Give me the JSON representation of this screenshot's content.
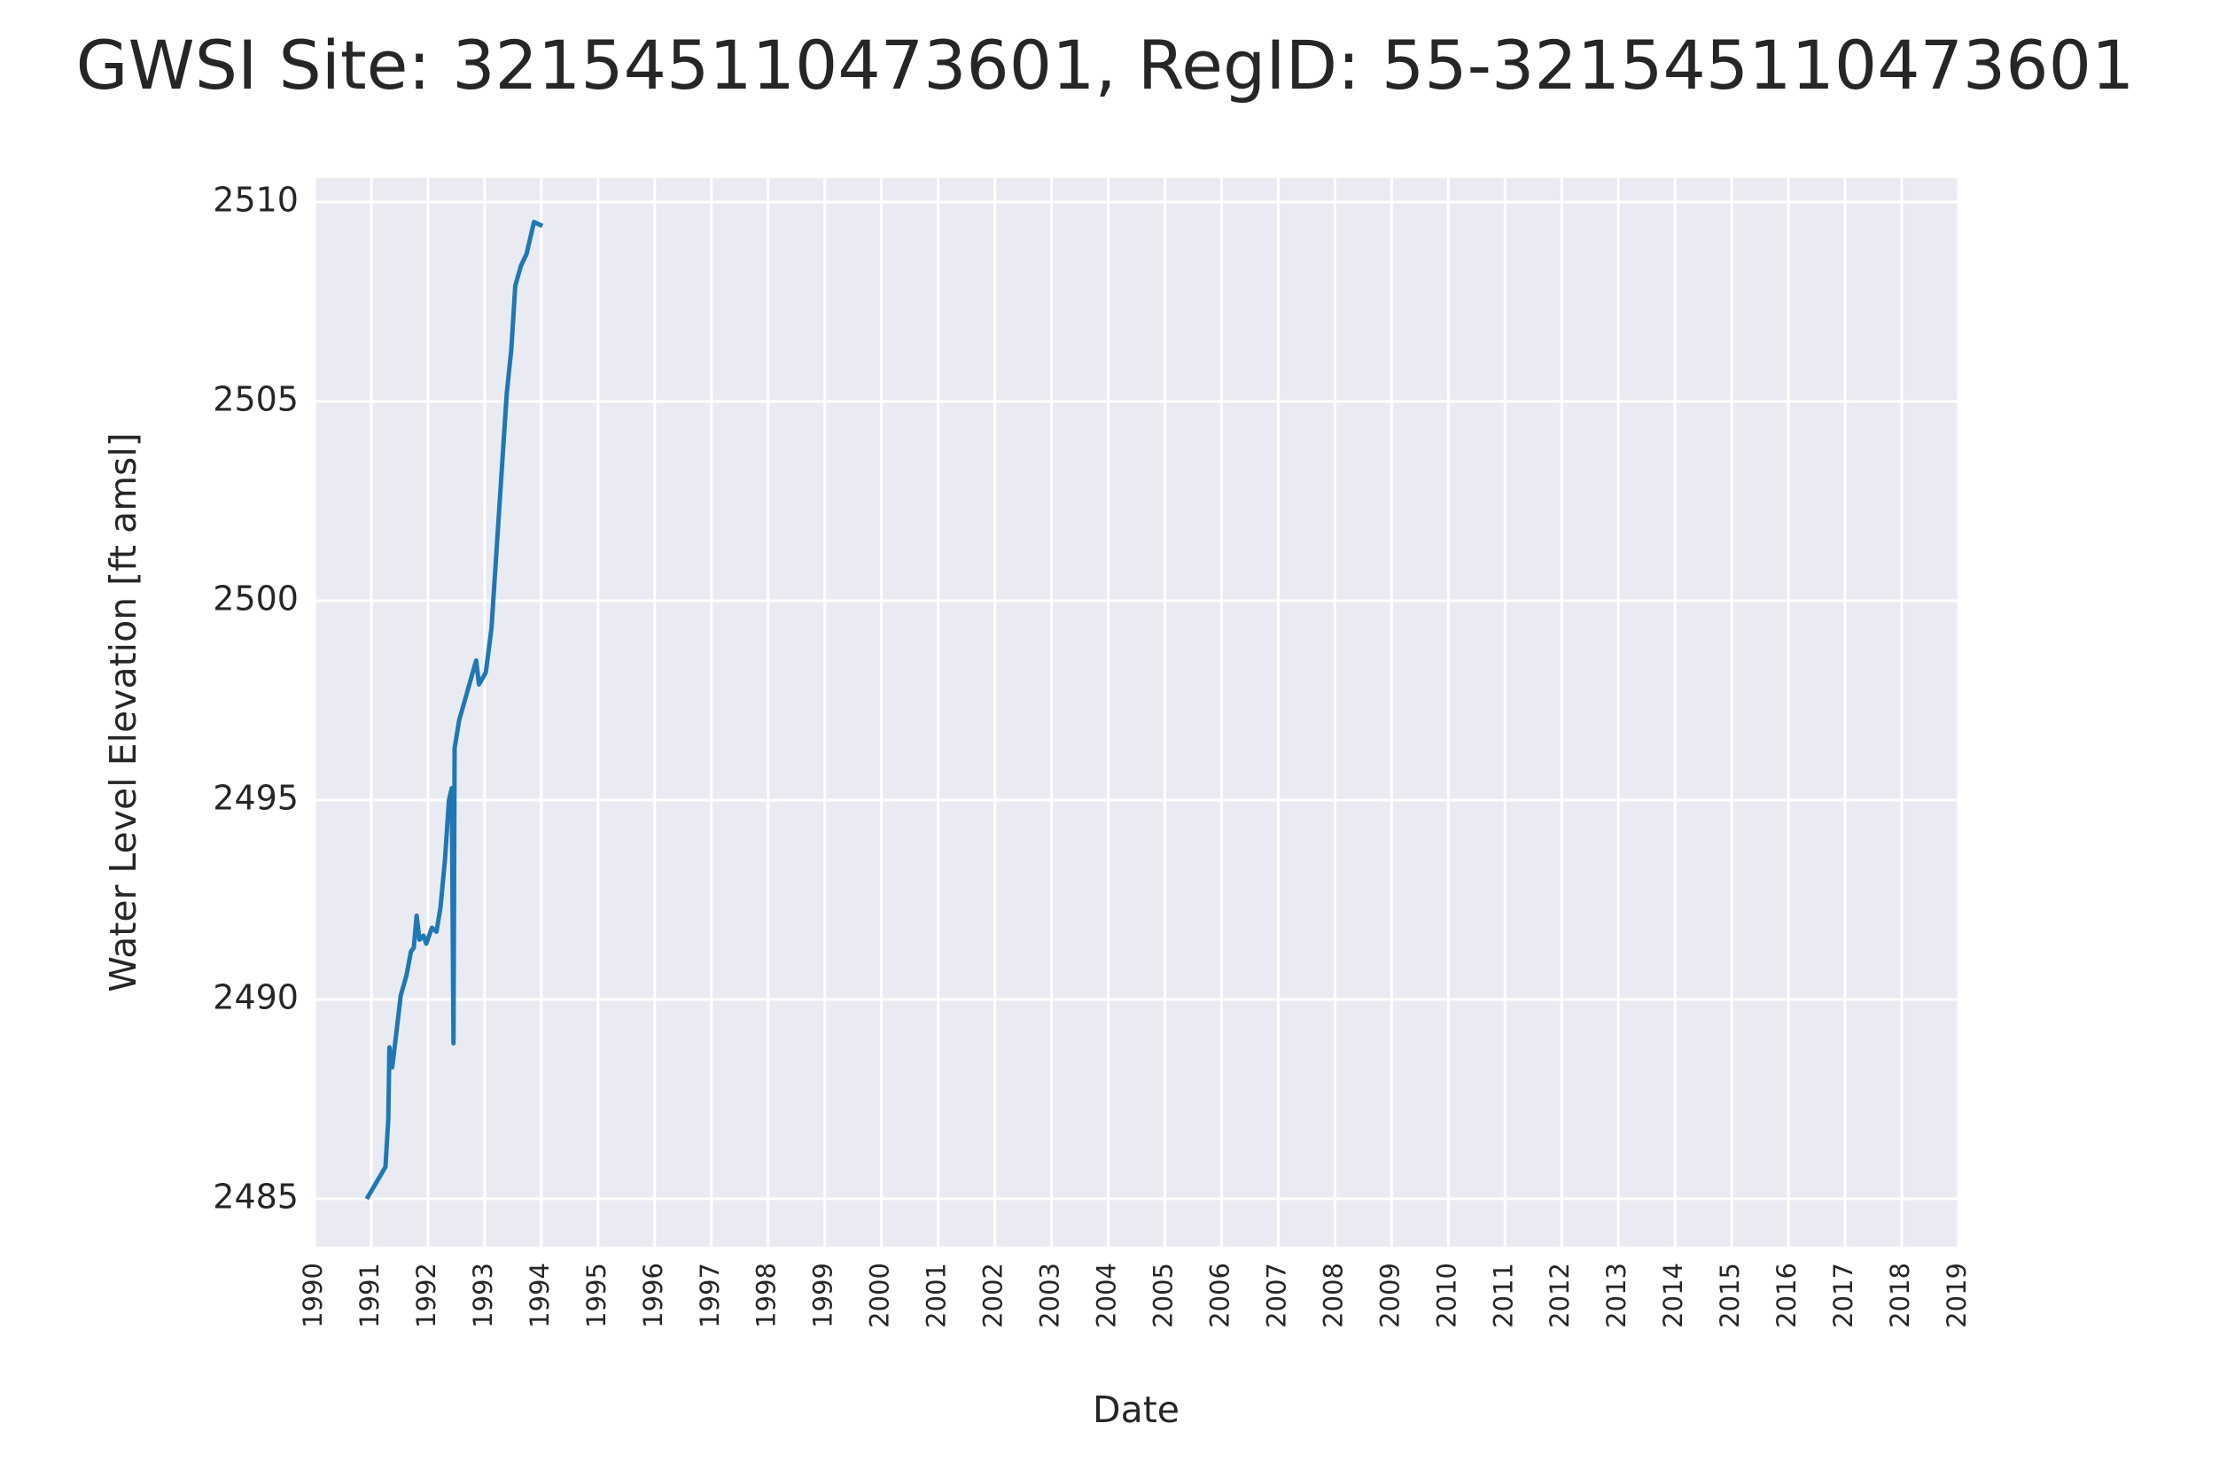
{
  "chart_data": {
    "type": "line",
    "title": "GWSI Site: 321545110473601, RegID: 55-321545110473601",
    "x_label": "Date",
    "y_label": "Water Level Elevation [ft amsl]",
    "x": [
      1990.92,
      1991.25,
      1991.3,
      1991.32,
      1991.37,
      1991.52,
      1991.62,
      1991.7,
      1991.75,
      1991.8,
      1991.85,
      1991.92,
      1991.97,
      1992.07,
      1992.15,
      1992.22,
      1992.3,
      1992.37,
      1992.42,
      1992.45,
      1992.47,
      1992.55,
      1992.85,
      1992.9,
      1993.02,
      1993.12,
      1993.39,
      1993.47,
      1993.54,
      1993.64,
      1993.74,
      1993.87,
      1994.02
    ],
    "series": [
      {
        "name": "Water Level Elevation",
        "color": "#1f77b4",
        "values": [
          2485.0,
          2485.8,
          2487.0,
          2488.8,
          2488.3,
          2490.1,
          2490.6,
          2491.2,
          2491.3,
          2492.1,
          2491.5,
          2491.6,
          2491.4,
          2491.8,
          2491.7,
          2492.3,
          2493.5,
          2495.0,
          2495.3,
          2488.9,
          2496.3,
          2497.0,
          2498.5,
          2497.9,
          2498.2,
          2499.3,
          2505.2,
          2506.3,
          2507.9,
          2508.4,
          2508.7,
          2509.5,
          2509.4
        ]
      }
    ],
    "xlim": [
      1990,
      2019
    ],
    "xticks": [
      1990,
      1991,
      1992,
      1993,
      1994,
      1995,
      1996,
      1997,
      1998,
      1999,
      2000,
      2001,
      2002,
      2003,
      2004,
      2005,
      2006,
      2007,
      2008,
      2009,
      2010,
      2011,
      2012,
      2013,
      2014,
      2015,
      2016,
      2017,
      2018,
      2019
    ],
    "ylim": [
      2483.8,
      2510.6
    ],
    "yticks": [
      2485,
      2490,
      2495,
      2500,
      2505,
      2510
    ],
    "grid": true,
    "background": "#eaeaf2"
  }
}
